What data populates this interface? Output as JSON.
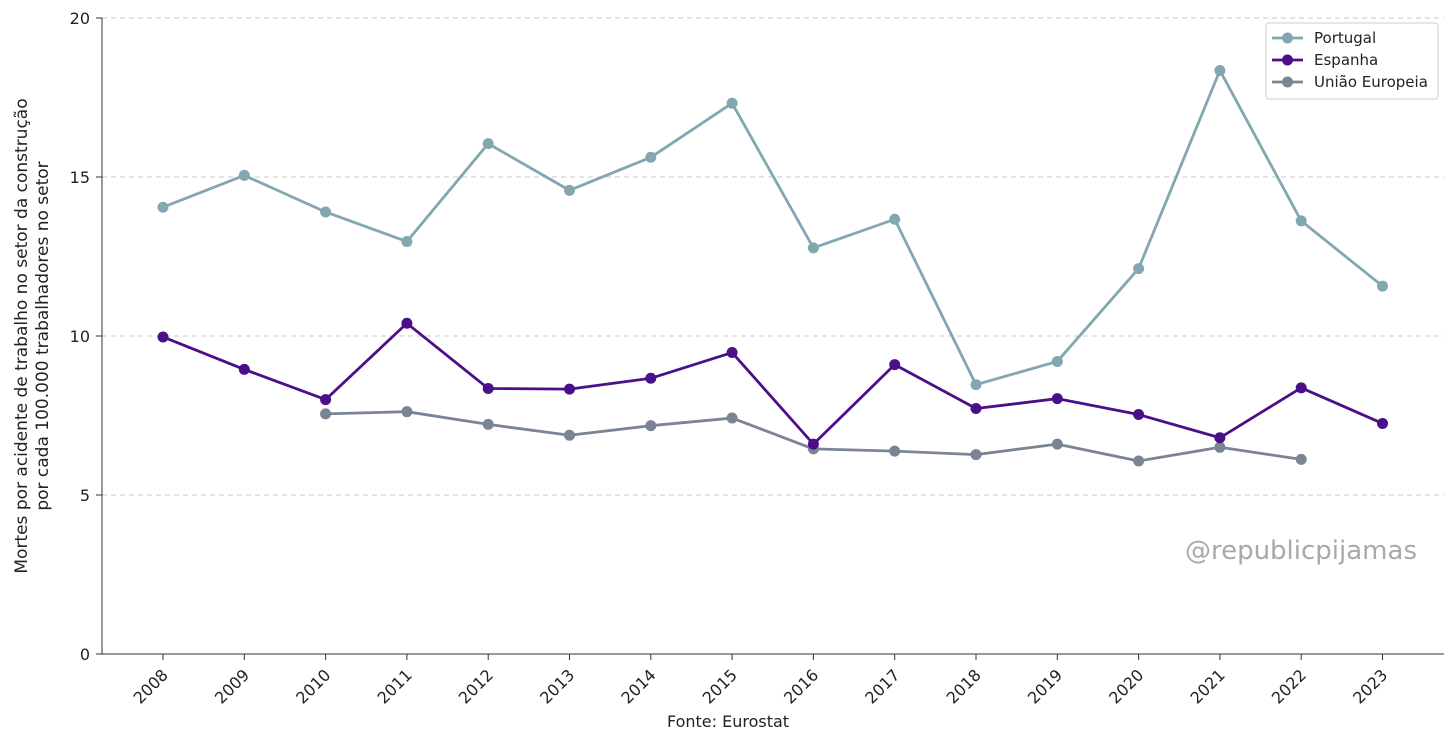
{
  "chart_data": {
    "type": "line",
    "x": [
      "2008",
      "2009",
      "2010",
      "2011",
      "2012",
      "2013",
      "2014",
      "2015",
      "2016",
      "2017",
      "2018",
      "2019",
      "2020",
      "2021",
      "2022",
      "2023"
    ],
    "series": [
      {
        "name": "Portugal",
        "color": "#82a7b1",
        "values": [
          14.05,
          15.05,
          13.9,
          12.97,
          16.05,
          14.58,
          15.62,
          17.32,
          12.77,
          13.67,
          8.47,
          9.2,
          12.12,
          18.35,
          13.62,
          11.57
        ]
      },
      {
        "name": "Espanha",
        "color": "#4b0f8a",
        "values": [
          9.97,
          8.95,
          8.0,
          10.4,
          8.35,
          8.33,
          8.67,
          9.48,
          6.6,
          9.1,
          7.72,
          8.03,
          7.53,
          6.8,
          8.37,
          7.25
        ]
      },
      {
        "name": "União Europeia",
        "color": "#7a8494",
        "values": [
          null,
          null,
          7.55,
          7.62,
          7.22,
          6.88,
          7.18,
          7.42,
          6.45,
          6.38,
          6.27,
          6.6,
          6.07,
          6.5,
          6.12,
          null
        ]
      }
    ],
    "ylabel_lines": [
      "Mortes por acidente de trabalho no setor da construção",
      "por cada 100.000 trabalhadores no setor"
    ],
    "xlabel": "Fonte: Eurostat",
    "ylim": [
      0,
      20
    ],
    "yticks": [
      "0",
      "5",
      "10",
      "15",
      "20"
    ],
    "grid": "horizontal dashed",
    "legend_position": "top-right",
    "watermark": "@republicpijamas"
  }
}
